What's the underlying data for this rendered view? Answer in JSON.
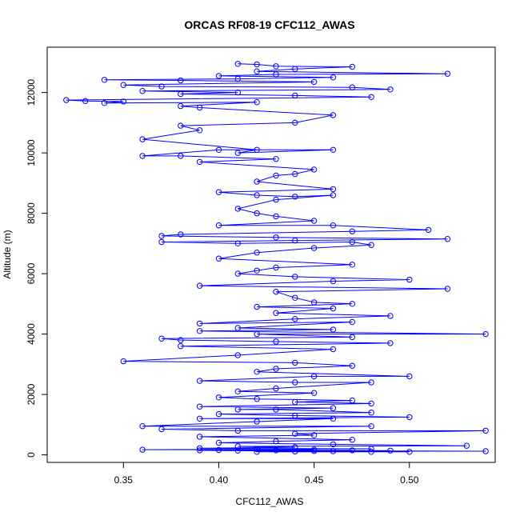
{
  "chart_data": {
    "type": "line",
    "title": "ORCAS RF08-19 CFC112_AWAS",
    "xlabel": "CFC112_AWAS",
    "ylabel": "Altitude (m)",
    "xlim": [
      0.31,
      0.545
    ],
    "ylim": [
      -250,
      13500
    ],
    "x_ticks": [
      0.35,
      0.4,
      0.45,
      0.5
    ],
    "x_tick_labels": [
      "0.35",
      "0.40",
      "0.45",
      "0.50"
    ],
    "y_ticks": [
      0,
      2000,
      4000,
      6000,
      8000,
      10000,
      12000
    ],
    "y_tick_labels": [
      "0",
      "2000",
      "4000",
      "6000",
      "8000",
      "10000",
      "12000"
    ],
    "grid": false,
    "legend": "none",
    "series": [
      {
        "color": "#0000ff",
        "marker": "open-circle",
        "line": true,
        "points": [
          [
            0.41,
            12950
          ],
          [
            0.42,
            12930
          ],
          [
            0.43,
            12870
          ],
          [
            0.47,
            12850
          ],
          [
            0.44,
            12780
          ],
          [
            0.42,
            12700
          ],
          [
            0.52,
            12620
          ],
          [
            0.43,
            12600
          ],
          [
            0.4,
            12550
          ],
          [
            0.46,
            12500
          ],
          [
            0.41,
            12450
          ],
          [
            0.34,
            12420
          ],
          [
            0.38,
            12400
          ],
          [
            0.45,
            12350
          ],
          [
            0.35,
            12250
          ],
          [
            0.37,
            12200
          ],
          [
            0.47,
            12170
          ],
          [
            0.49,
            12100
          ],
          [
            0.36,
            12050
          ],
          [
            0.41,
            12000
          ],
          [
            0.38,
            11950
          ],
          [
            0.44,
            11900
          ],
          [
            0.48,
            11850
          ],
          [
            0.32,
            11750
          ],
          [
            0.33,
            11720
          ],
          [
            0.35,
            11700
          ],
          [
            0.34,
            11650
          ],
          [
            0.42,
            11680
          ],
          [
            0.38,
            11550
          ],
          [
            0.39,
            11500
          ],
          [
            0.46,
            11250
          ],
          [
            0.44,
            11000
          ],
          [
            0.38,
            10900
          ],
          [
            0.39,
            10750
          ],
          [
            0.36,
            10450
          ],
          [
            0.42,
            10100
          ],
          [
            0.41,
            10000
          ],
          [
            0.46,
            10100
          ],
          [
            0.4,
            10100
          ],
          [
            0.36,
            9900
          ],
          [
            0.38,
            9900
          ],
          [
            0.43,
            9800
          ],
          [
            0.39,
            9700
          ],
          [
            0.45,
            9450
          ],
          [
            0.44,
            9300
          ],
          [
            0.43,
            9250
          ],
          [
            0.42,
            9050
          ],
          [
            0.46,
            8800
          ],
          [
            0.4,
            8700
          ],
          [
            0.42,
            8600
          ],
          [
            0.44,
            8550
          ],
          [
            0.46,
            8600
          ],
          [
            0.43,
            8450
          ],
          [
            0.41,
            8150
          ],
          [
            0.42,
            8000
          ],
          [
            0.43,
            7900
          ],
          [
            0.45,
            7750
          ],
          [
            0.4,
            7600
          ],
          [
            0.46,
            7600
          ],
          [
            0.51,
            7450
          ],
          [
            0.47,
            7400
          ],
          [
            0.38,
            7300
          ],
          [
            0.37,
            7250
          ],
          [
            0.43,
            7200
          ],
          [
            0.52,
            7150
          ],
          [
            0.44,
            7100
          ],
          [
            0.37,
            7050
          ],
          [
            0.41,
            7000
          ],
          [
            0.47,
            7050
          ],
          [
            0.48,
            6950
          ],
          [
            0.45,
            6850
          ],
          [
            0.42,
            6700
          ],
          [
            0.4,
            6500
          ],
          [
            0.47,
            6300
          ],
          [
            0.43,
            6200
          ],
          [
            0.42,
            6100
          ],
          [
            0.41,
            6000
          ],
          [
            0.44,
            5900
          ],
          [
            0.5,
            5800
          ],
          [
            0.46,
            5750
          ],
          [
            0.39,
            5600
          ],
          [
            0.52,
            5500
          ],
          [
            0.43,
            5400
          ],
          [
            0.44,
            5200
          ],
          [
            0.45,
            5050
          ],
          [
            0.47,
            5000
          ],
          [
            0.42,
            4900
          ],
          [
            0.46,
            4850
          ],
          [
            0.43,
            4700
          ],
          [
            0.49,
            4600
          ],
          [
            0.44,
            4500
          ],
          [
            0.39,
            4350
          ],
          [
            0.47,
            4400
          ],
          [
            0.41,
            4200
          ],
          [
            0.46,
            4150
          ],
          [
            0.39,
            4100
          ],
          [
            0.54,
            4000
          ],
          [
            0.42,
            4000
          ],
          [
            0.47,
            3900
          ],
          [
            0.37,
            3850
          ],
          [
            0.38,
            3800
          ],
          [
            0.43,
            3750
          ],
          [
            0.49,
            3700
          ],
          [
            0.38,
            3600
          ],
          [
            0.46,
            3500
          ],
          [
            0.41,
            3300
          ],
          [
            0.35,
            3100
          ],
          [
            0.44,
            3050
          ],
          [
            0.47,
            2950
          ],
          [
            0.43,
            2850
          ],
          [
            0.42,
            2750
          ],
          [
            0.5,
            2600
          ],
          [
            0.45,
            2600
          ],
          [
            0.39,
            2450
          ],
          [
            0.44,
            2400
          ],
          [
            0.48,
            2400
          ],
          [
            0.43,
            2200
          ],
          [
            0.41,
            2100
          ],
          [
            0.45,
            2050
          ],
          [
            0.4,
            1900
          ],
          [
            0.42,
            1850
          ],
          [
            0.47,
            1800
          ],
          [
            0.44,
            1750
          ],
          [
            0.48,
            1700
          ],
          [
            0.39,
            1600
          ],
          [
            0.46,
            1550
          ],
          [
            0.41,
            1500
          ],
          [
            0.43,
            1500
          ],
          [
            0.48,
            1400
          ],
          [
            0.4,
            1350
          ],
          [
            0.44,
            1300
          ],
          [
            0.5,
            1250
          ],
          [
            0.39,
            1200
          ],
          [
            0.46,
            1200
          ],
          [
            0.42,
            1100
          ],
          [
            0.36,
            950
          ],
          [
            0.48,
            950
          ],
          [
            0.37,
            850
          ],
          [
            0.41,
            800
          ],
          [
            0.54,
            800
          ],
          [
            0.44,
            700
          ],
          [
            0.45,
            650
          ],
          [
            0.39,
            600
          ],
          [
            0.47,
            500
          ],
          [
            0.43,
            450
          ],
          [
            0.4,
            400
          ],
          [
            0.46,
            350
          ],
          [
            0.53,
            300
          ],
          [
            0.41,
            280
          ],
          [
            0.44,
            250
          ],
          [
            0.39,
            220
          ],
          [
            0.48,
            200
          ],
          [
            0.42,
            190
          ],
          [
            0.36,
            170
          ],
          [
            0.45,
            170
          ],
          [
            0.4,
            160
          ],
          [
            0.47,
            150
          ],
          [
            0.43,
            150
          ],
          [
            0.49,
            140
          ],
          [
            0.41,
            140
          ],
          [
            0.54,
            120
          ],
          [
            0.46,
            120
          ],
          [
            0.44,
            110
          ],
          [
            0.5,
            100
          ],
          [
            0.42,
            100
          ],
          [
            0.48,
            100
          ],
          [
            0.39,
            150
          ],
          [
            0.45,
            130
          ]
        ]
      }
    ]
  }
}
